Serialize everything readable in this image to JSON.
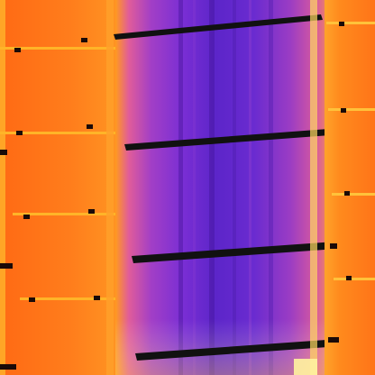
{
  "image": {
    "kind": "thermal infrared aerial view of solar panels",
    "palette": {
      "cold": "#3a0f8c",
      "cool": "#6a2bd0",
      "mid": "#b23fbf",
      "warm": "#ff7a1a",
      "hot": "#ffb21f",
      "hottest": "#fff3a0",
      "frame": "#111111"
    }
  }
}
